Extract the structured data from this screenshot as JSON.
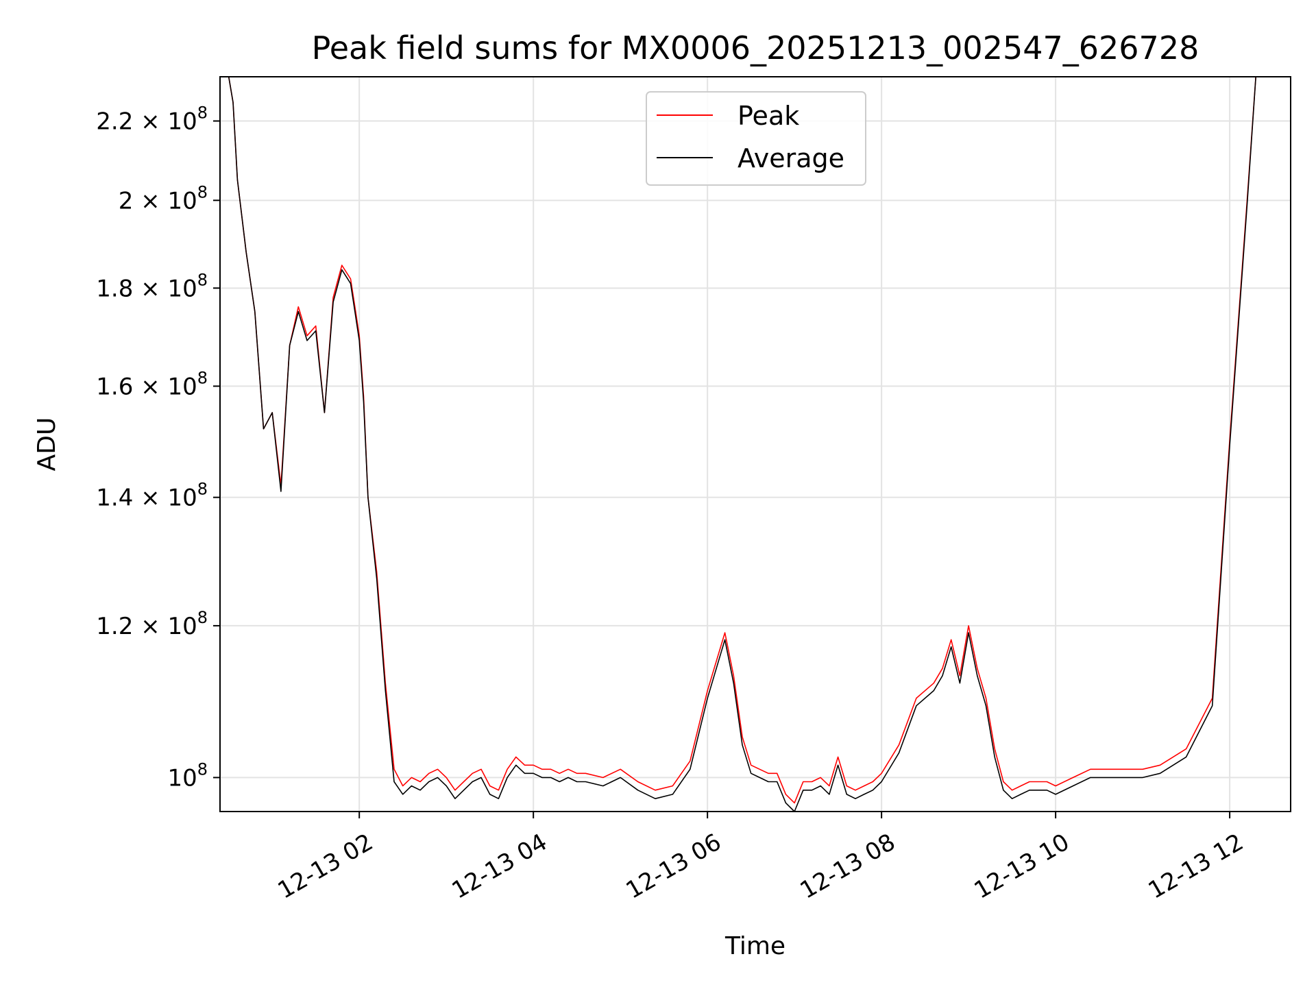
{
  "chart_data": {
    "type": "line",
    "title": "Peak field sums for MX0006_20251213_002547_626728",
    "xlabel": "Time",
    "ylabel": "ADU",
    "yscale": "log",
    "xlim": [
      0.4,
      12.7
    ],
    "ylim": [
      96000000,
      232000000
    ],
    "x_unit": "hours after 2025-12-13 00:00",
    "x_ticks": [
      {
        "value": 2,
        "label": "12-13 02"
      },
      {
        "value": 4,
        "label": "12-13 04"
      },
      {
        "value": 6,
        "label": "12-13 06"
      },
      {
        "value": 8,
        "label": "12-13 08"
      },
      {
        "value": 10,
        "label": "12-13 10"
      },
      {
        "value": 12,
        "label": "12-13 12"
      }
    ],
    "y_ticks": [
      {
        "value": 100000000,
        "mantissa": "",
        "exp": "8"
      },
      {
        "value": 120000000,
        "mantissa": "1.2",
        "exp": "8"
      },
      {
        "value": 140000000,
        "mantissa": "1.4",
        "exp": "8"
      },
      {
        "value": 160000000,
        "mantissa": "1.6",
        "exp": "8"
      },
      {
        "value": 180000000,
        "mantissa": "1.8",
        "exp": "8"
      },
      {
        "value": 200000000,
        "mantissa": "2",
        "exp": "8"
      },
      {
        "value": 220000000,
        "mantissa": "2.2",
        "exp": "8"
      }
    ],
    "tick_label_prefix": "10",
    "tick_label_times": "×",
    "grid": true,
    "legend_position": "upper-center",
    "series": [
      {
        "name": "Peak",
        "color": "#ff0000",
        "x": [
          0.5,
          0.55,
          0.6,
          0.7,
          0.8,
          0.9,
          1.0,
          1.1,
          1.2,
          1.3,
          1.4,
          1.5,
          1.6,
          1.7,
          1.8,
          1.9,
          1.95,
          2.0,
          2.05,
          2.1,
          2.2,
          2.3,
          2.4,
          2.5,
          2.6,
          2.7,
          2.8,
          2.9,
          3.0,
          3.1,
          3.2,
          3.3,
          3.4,
          3.5,
          3.6,
          3.7,
          3.8,
          3.9,
          4.0,
          4.1,
          4.2,
          4.3,
          4.4,
          4.5,
          4.6,
          4.8,
          5.0,
          5.2,
          5.4,
          5.6,
          5.8,
          6.0,
          6.2,
          6.3,
          6.4,
          6.5,
          6.6,
          6.7,
          6.8,
          6.9,
          7.0,
          7.1,
          7.2,
          7.3,
          7.4,
          7.5,
          7.6,
          7.7,
          7.8,
          7.9,
          8.0,
          8.2,
          8.4,
          8.6,
          8.7,
          8.8,
          8.9,
          9.0,
          9.1,
          9.2,
          9.3,
          9.4,
          9.5,
          9.6,
          9.7,
          9.8,
          9.9,
          10.0,
          10.2,
          10.4,
          10.6,
          10.8,
          11.0,
          11.2,
          11.5,
          11.8,
          12.0,
          12.2,
          12.3,
          12.4,
          12.5,
          12.6
        ],
        "values": [
          232000000,
          225000000,
          205000000,
          188000000,
          175000000,
          152000000,
          155000000,
          142000000,
          168000000,
          176000000,
          170000000,
          172000000,
          155000000,
          178000000,
          185000000,
          182000000,
          176000000,
          170000000,
          158000000,
          140000000,
          128000000,
          112000000,
          101000000,
          99000000,
          100000000,
          99500000,
          100500000,
          101000000,
          100000000,
          98500000,
          99500000,
          100500000,
          101000000,
          99000000,
          98500000,
          101000000,
          102500000,
          101500000,
          101500000,
          101000000,
          101000000,
          100500000,
          101000000,
          100500000,
          100500000,
          100000000,
          101000000,
          99500000,
          98500000,
          99000000,
          102000000,
          111000000,
          119000000,
          113000000,
          105000000,
          101500000,
          101000000,
          100500000,
          100500000,
          98000000,
          97000000,
          99500000,
          99500000,
          100000000,
          99000000,
          102500000,
          99000000,
          98500000,
          99000000,
          99500000,
          100500000,
          104000000,
          110000000,
          112000000,
          114000000,
          118000000,
          113000000,
          120000000,
          114000000,
          110000000,
          103500000,
          99500000,
          98500000,
          99000000,
          99500000,
          99500000,
          99500000,
          99000000,
          100000000,
          101000000,
          101000000,
          101000000,
          101000000,
          101500000,
          103500000,
          110000000,
          150000000,
          200000000,
          232000000,
          232000000,
          232000000,
          232000000
        ]
      },
      {
        "name": "Average",
        "color": "#000000",
        "x": [
          0.5,
          0.55,
          0.6,
          0.7,
          0.8,
          0.9,
          1.0,
          1.1,
          1.2,
          1.3,
          1.4,
          1.5,
          1.6,
          1.7,
          1.8,
          1.9,
          1.95,
          2.0,
          2.05,
          2.1,
          2.2,
          2.3,
          2.4,
          2.5,
          2.6,
          2.7,
          2.8,
          2.9,
          3.0,
          3.1,
          3.2,
          3.3,
          3.4,
          3.5,
          3.6,
          3.7,
          3.8,
          3.9,
          4.0,
          4.1,
          4.2,
          4.3,
          4.4,
          4.5,
          4.6,
          4.8,
          5.0,
          5.2,
          5.4,
          5.6,
          5.8,
          6.0,
          6.2,
          6.3,
          6.4,
          6.5,
          6.6,
          6.7,
          6.8,
          6.9,
          7.0,
          7.1,
          7.2,
          7.3,
          7.4,
          7.5,
          7.6,
          7.7,
          7.8,
          7.9,
          8.0,
          8.2,
          8.4,
          8.6,
          8.7,
          8.8,
          8.9,
          9.0,
          9.1,
          9.2,
          9.3,
          9.4,
          9.5,
          9.6,
          9.7,
          9.8,
          9.9,
          10.0,
          10.2,
          10.4,
          10.6,
          10.8,
          11.0,
          11.2,
          11.5,
          11.8,
          12.0,
          12.2,
          12.3,
          12.4,
          12.5,
          12.6
        ],
        "values": [
          232000000,
          225000000,
          205000000,
          188000000,
          175000000,
          152000000,
          155000000,
          141000000,
          168000000,
          175000000,
          169000000,
          171000000,
          155000000,
          177000000,
          184000000,
          181000000,
          175000000,
          169000000,
          157000000,
          140000000,
          127000000,
          111000000,
          99500000,
          98000000,
          99000000,
          98500000,
          99500000,
          100000000,
          99000000,
          97500000,
          98500000,
          99500000,
          100000000,
          98000000,
          97500000,
          100000000,
          101500000,
          100500000,
          100500000,
          100000000,
          100000000,
          99500000,
          100000000,
          99500000,
          99500000,
          99000000,
          100000000,
          98500000,
          97500000,
          98000000,
          101000000,
          110000000,
          118000000,
          112000000,
          104000000,
          100500000,
          100000000,
          99500000,
          99500000,
          97000000,
          96000000,
          98500000,
          98500000,
          99000000,
          98000000,
          101500000,
          98000000,
          97500000,
          98000000,
          98500000,
          99500000,
          103000000,
          109000000,
          111000000,
          113000000,
          117000000,
          112000000,
          119000000,
          113000000,
          109000000,
          102500000,
          98500000,
          97500000,
          98000000,
          98500000,
          98500000,
          98500000,
          98000000,
          99000000,
          100000000,
          100000000,
          100000000,
          100000000,
          100500000,
          102500000,
          109000000,
          149000000,
          199000000,
          232000000,
          232000000,
          232000000,
          232000000
        ]
      }
    ]
  }
}
